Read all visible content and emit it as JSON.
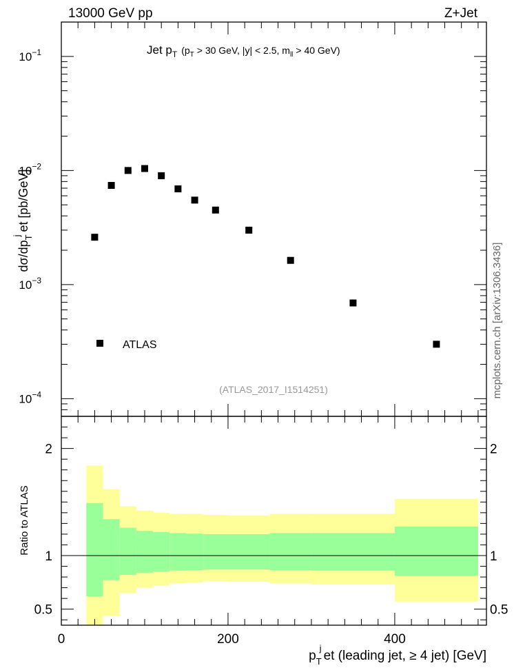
{
  "header": {
    "energy_label": "13000 GeV pp",
    "process_label": "Z+Jet"
  },
  "side_label": "mcplots.cern.ch [arXiv:1306.3436]",
  "watermark": "(ATLAS_2017_I1514251)",
  "chart_data": [
    {
      "type": "scatter",
      "title": {
        "main": "Jet p",
        "main_sub": "T",
        "cut_pre": "(p",
        "cut_pre_sub": "T",
        "cut_mid": "> 30 GeV, |y| < 2.5, m",
        "cut_mid_sub": "ll",
        "cut_post": "> 40 GeV)"
      },
      "ylabel": {
        "a": "dσ/dp",
        "a_sub": "T",
        "a_sup": "j",
        "b": "et [pb/GeV]"
      },
      "yscale": "log",
      "ylim": [
        7e-05,
        0.2
      ],
      "xlim": [
        0,
        510
      ],
      "grid": false,
      "y_ticks": [
        {
          "value": 0.1,
          "base": "10",
          "exp": "−1"
        },
        {
          "value": 0.01,
          "base": "10",
          "exp": "−2"
        },
        {
          "value": 0.001,
          "base": "10",
          "exp": "−3"
        },
        {
          "value": 0.0001,
          "base": "10",
          "exp": "−4"
        }
      ],
      "legend": {
        "placement": "bottom-left",
        "entries": [
          "ATLAS"
        ]
      },
      "series": [
        {
          "name": "ATLAS",
          "marker": "square",
          "color": "#000000",
          "x": [
            40,
            60,
            80,
            100,
            120,
            140,
            160,
            185,
            225,
            275,
            350,
            450
          ],
          "y": [
            0.0026,
            0.0074,
            0.01,
            0.0104,
            0.009,
            0.0069,
            0.0055,
            0.0045,
            0.003,
            0.00163,
            0.00069,
            0.0003
          ]
        }
      ]
    },
    {
      "type": "area",
      "ylabel": "Ratio to ATLAS",
      "xlabel": {
        "a": "p",
        "a_sub": "T",
        "a_sup": "j",
        "b": "et (leading jet, ≥ 4 jet) [GeV]"
      },
      "xlim": [
        0,
        510
      ],
      "ylim": [
        0.35,
        2.3
      ],
      "x_ticks": [
        "0",
        "200",
        "400"
      ],
      "x_tick_values": [
        0,
        200,
        400
      ],
      "y_ticks": [
        "0.5",
        "1",
        "2"
      ],
      "y_tick_values": [
        0.5,
        1,
        2
      ],
      "reference_line": 1,
      "bins": [
        {
          "lo": 30,
          "hi": 50,
          "inner": [
            0.62,
            1.49
          ],
          "outer": [
            0.33,
            1.84
          ]
        },
        {
          "lo": 50,
          "hi": 70,
          "inner": [
            0.77,
            1.34
          ],
          "outer": [
            0.44,
            1.62
          ]
        },
        {
          "lo": 70,
          "hi": 90,
          "inner": [
            0.82,
            1.26
          ],
          "outer": [
            0.65,
            1.46
          ]
        },
        {
          "lo": 90,
          "hi": 110,
          "inner": [
            0.84,
            1.23
          ],
          "outer": [
            0.7,
            1.42
          ]
        },
        {
          "lo": 110,
          "hi": 130,
          "inner": [
            0.85,
            1.22
          ],
          "outer": [
            0.72,
            1.4
          ]
        },
        {
          "lo": 130,
          "hi": 150,
          "inner": [
            0.86,
            1.21
          ],
          "outer": [
            0.74,
            1.39
          ]
        },
        {
          "lo": 150,
          "hi": 170,
          "inner": [
            0.865,
            1.205
          ],
          "outer": [
            0.75,
            1.39
          ]
        },
        {
          "lo": 170,
          "hi": 200,
          "inner": [
            0.87,
            1.2
          ],
          "outer": [
            0.76,
            1.38
          ]
        },
        {
          "lo": 200,
          "hi": 250,
          "inner": [
            0.87,
            1.2
          ],
          "outer": [
            0.755,
            1.375
          ]
        },
        {
          "lo": 250,
          "hi": 300,
          "inner": [
            0.865,
            1.21
          ],
          "outer": [
            0.74,
            1.39
          ]
        },
        {
          "lo": 300,
          "hi": 400,
          "inner": [
            0.86,
            1.21
          ],
          "outer": [
            0.73,
            1.39
          ]
        },
        {
          "lo": 400,
          "hi": 500,
          "inner": [
            0.81,
            1.27
          ],
          "outer": [
            0.57,
            1.53
          ]
        }
      ],
      "colors": {
        "inner": "#99ff99",
        "outer": "#ffff99"
      }
    }
  ]
}
